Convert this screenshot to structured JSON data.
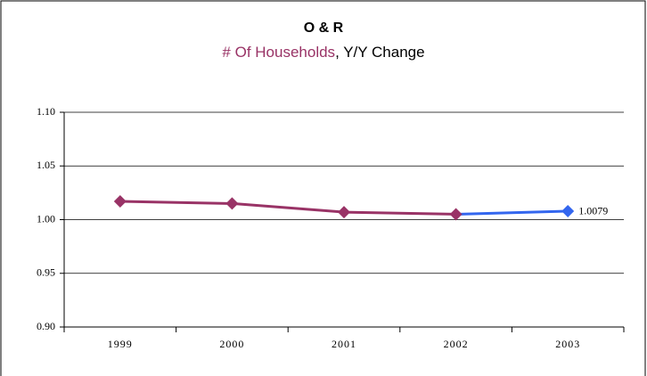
{
  "chart_data": {
    "type": "line",
    "title": "O & R",
    "subtitle": [
      "# Of Households",
      ", Y/Y Change"
    ],
    "subtitle_colors": [
      "#993366",
      "#000000"
    ],
    "categories": [
      "1999",
      "2000",
      "2001",
      "2002",
      "2003"
    ],
    "series": [
      {
        "values": [
          1.017,
          1.015,
          1.007,
          1.005,
          1.0079
        ],
        "color": "#993366",
        "point_colors": [
          "#993366",
          "#993366",
          "#993366",
          "#993366",
          "#3366ee"
        ],
        "value_labels": [
          null,
          null,
          null,
          null,
          "1.0079"
        ]
      }
    ],
    "ylim": [
      0.9,
      1.1
    ],
    "yticks": [
      {
        "value": 0.9,
        "label": "0.90"
      },
      {
        "value": 0.95,
        "label": "0.95"
      },
      {
        "value": 1.0,
        "label": "1.00"
      },
      {
        "value": 1.05,
        "label": "1.05"
      },
      {
        "value": 1.1,
        "label": "1.10"
      }
    ],
    "grid": true
  }
}
